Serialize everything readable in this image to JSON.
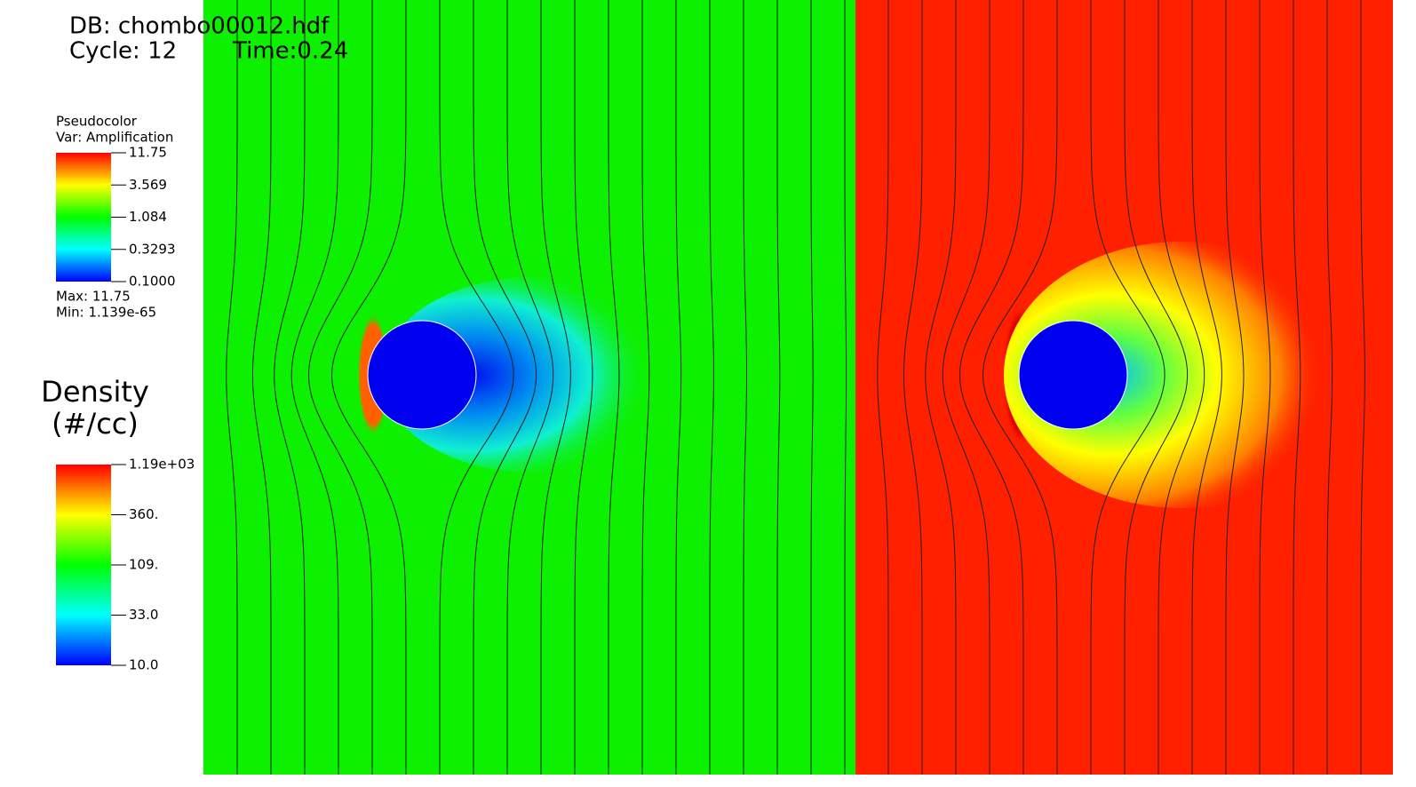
{
  "header": {
    "db": "DB: chombo00012.hdf",
    "cycle": "Cycle: 12",
    "time": "Time:0.24"
  },
  "legend_amplification": {
    "title": "Pseudocolor",
    "var": "Var: Amplification",
    "ticks": [
      "11.75",
      "3.569",
      "1.084",
      "0.3293",
      "0.1000"
    ],
    "max": "Max:  11.75",
    "min": "Min:  1.139e-65"
  },
  "legend_density": {
    "title": "Density",
    "units": "(#/cc)",
    "ticks": [
      "1.19e+03",
      "360.",
      "109.",
      "33.0",
      "10.0"
    ]
  }
}
